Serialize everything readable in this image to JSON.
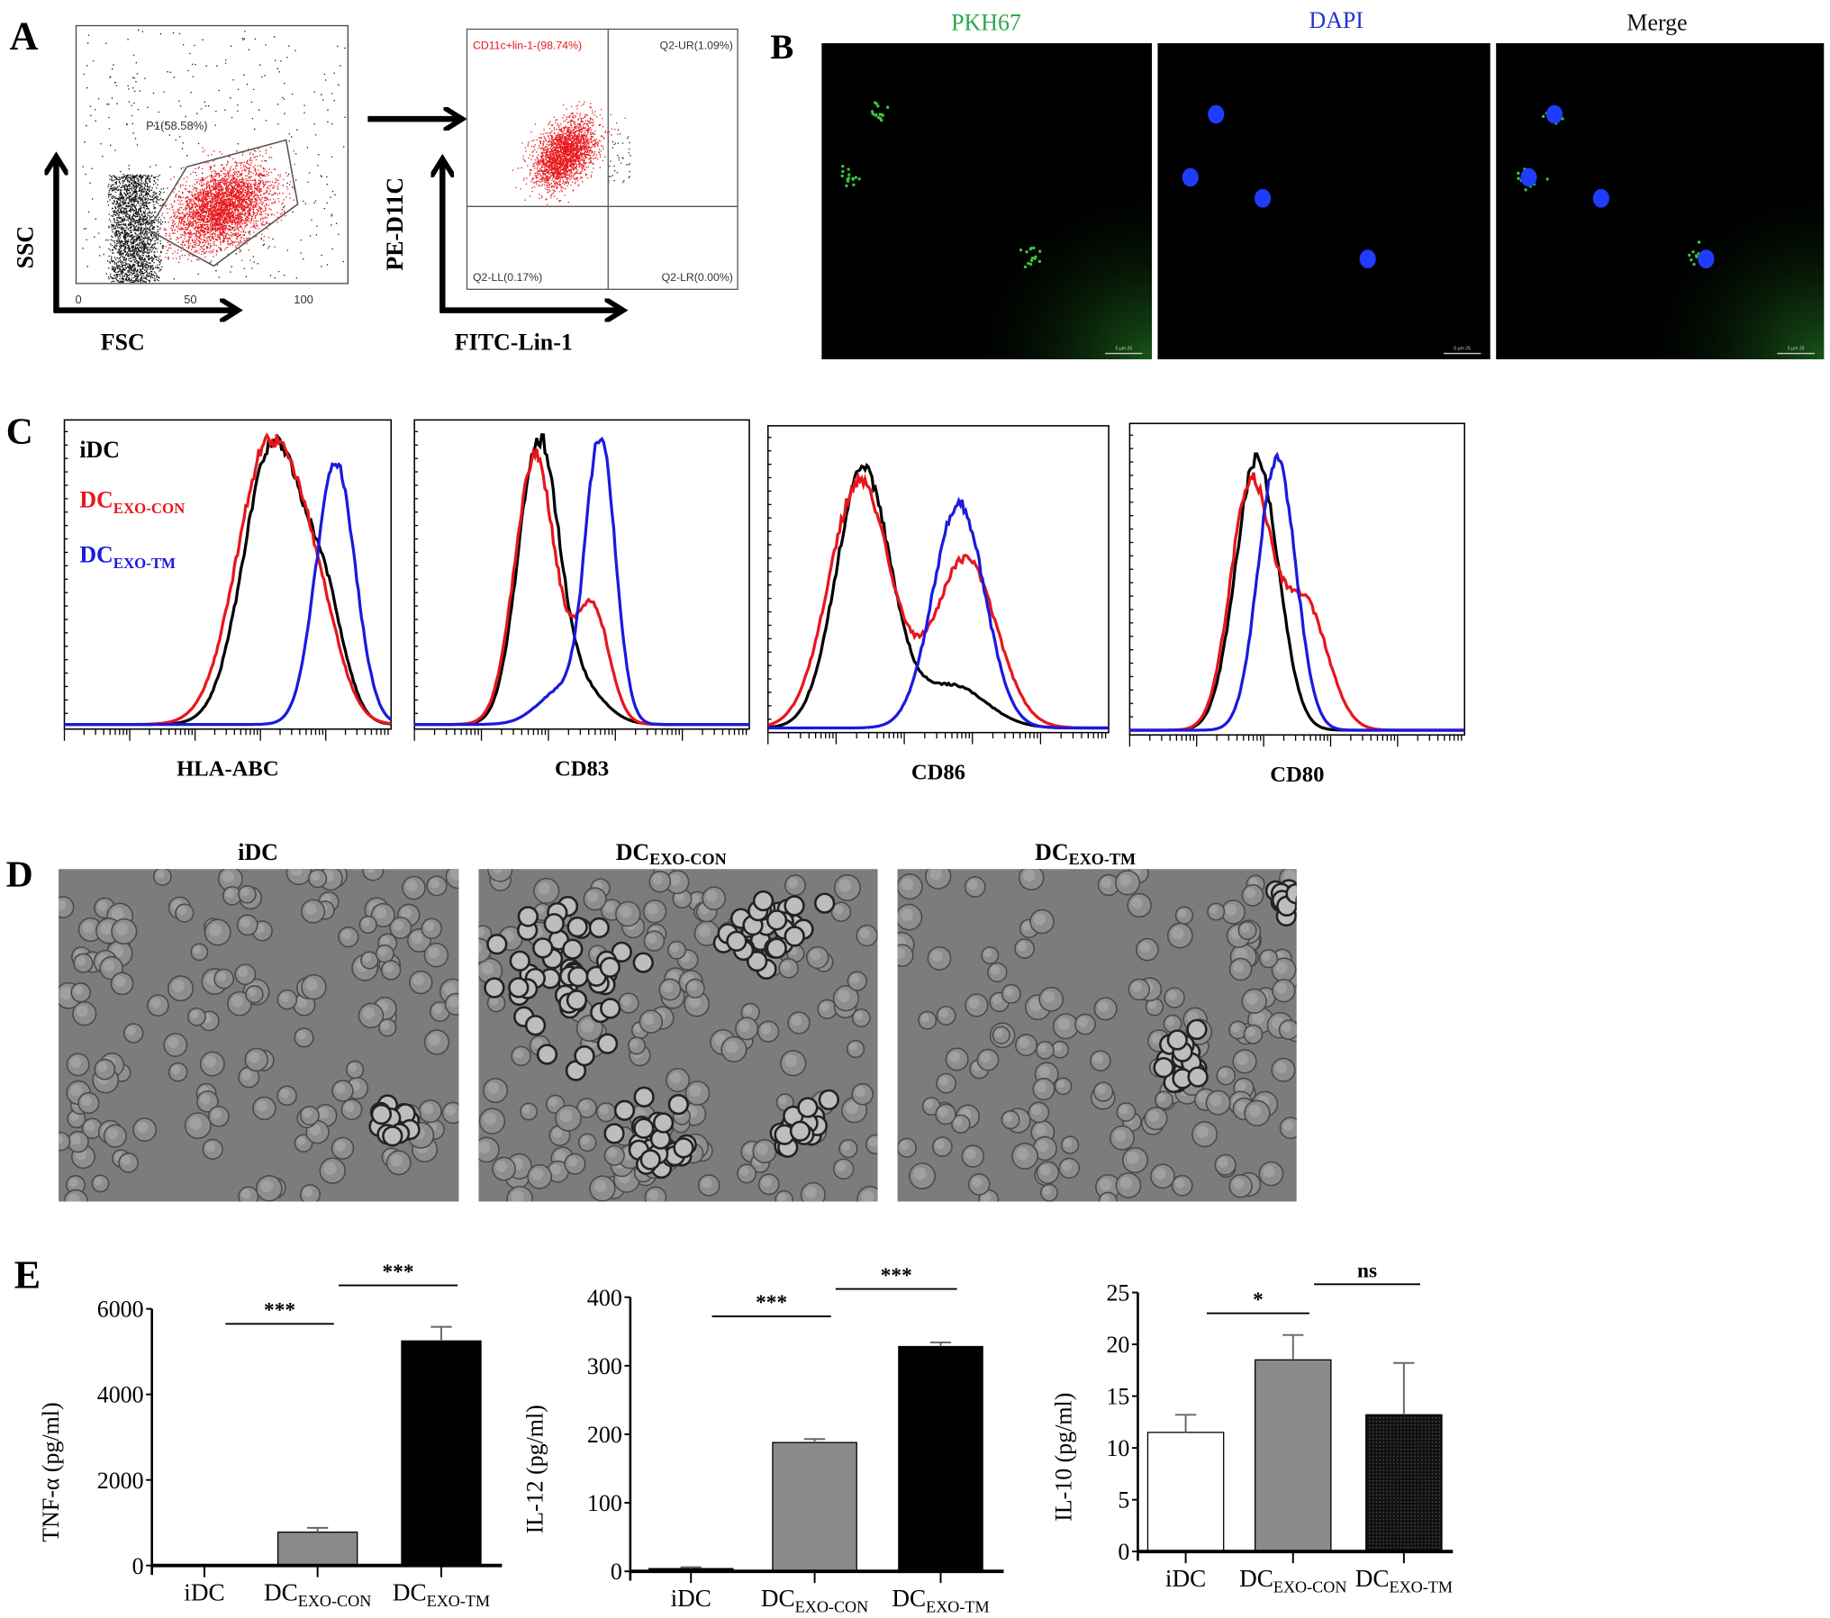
{
  "panel_letters": {
    "a": "A",
    "b": "B",
    "c": "C",
    "d": "D",
    "e": "E"
  },
  "panel_a": {
    "scatter_fsc_ssc": {
      "gate_label": "P1(58.58%)",
      "x_ticks": [
        "0",
        "50",
        "100"
      ],
      "xlabel": "FSC",
      "ylabel": "SSC"
    },
    "scatter_lin_cd11c": {
      "q_ul": "CD11c+lin-1-(98.74%)",
      "q_ur": "Q2-UR(1.09%)",
      "q_ll": "Q2-LL(0.17%)",
      "q_lr": "Q2-LR(0.00%)",
      "xlabel": "FITC-Lin-1",
      "ylabel": "PE-D11C"
    }
  },
  "panel_b": {
    "channels": [
      {
        "label": "PKH67",
        "color": "#2aa84a"
      },
      {
        "label": "DAPI",
        "color": "#2233cc"
      },
      {
        "label": "Merge",
        "color": "#111111"
      }
    ],
    "scale_bar": "0 μm 25"
  },
  "legend": {
    "idc": {
      "main": "iDC",
      "sub": "",
      "color": "#000000"
    },
    "con": {
      "main": "DC",
      "sub": "EXO-CON",
      "color": "#e8161b"
    },
    "tm": {
      "main": "DC",
      "sub": "EXO-TM",
      "color": "#1a1adf"
    }
  },
  "panel_d": {
    "titles": [
      {
        "main": "iDC",
        "sub": ""
      },
      {
        "main": "DC",
        "sub": "EXO-CON"
      },
      {
        "main": "DC",
        "sub": "EXO-TM"
      }
    ]
  },
  "chart_data": [
    {
      "type": "line",
      "title": "",
      "xlabel": "HLA-ABC",
      "ylabel": "",
      "xscale": "log",
      "xlim": [
        0,
        5
      ],
      "series": [
        {
          "name": "iDC",
          "color": "#000000",
          "components": [
            [
              3.2,
              0.45,
              1.0
            ],
            [
              4.0,
              0.3,
              0.35
            ]
          ]
        },
        {
          "name": "DC EXO-CON",
          "color": "#e8161b",
          "components": [
            [
              3.15,
              0.5,
              1.0
            ],
            [
              3.9,
              0.35,
              0.25
            ]
          ]
        },
        {
          "name": "DC EXO-TM",
          "color": "#1a1adf",
          "components": [
            [
              4.15,
              0.3,
              0.92
            ]
          ]
        }
      ]
    },
    {
      "type": "line",
      "title": "",
      "xlabel": "CD83",
      "ylabel": "",
      "xscale": "log",
      "xlim": [
        0,
        5
      ],
      "series": [
        {
          "name": "iDC",
          "color": "#000000",
          "components": [
            [
              1.85,
              0.3,
              1.0
            ],
            [
              2.5,
              0.35,
              0.12
            ]
          ]
        },
        {
          "name": "DC EXO-CON",
          "color": "#e8161b",
          "components": [
            [
              1.8,
              0.3,
              0.95
            ],
            [
              2.65,
              0.25,
              0.42
            ]
          ]
        },
        {
          "name": "DC EXO-TM",
          "color": "#1a1adf",
          "components": [
            [
              2.78,
              0.22,
              1.0
            ],
            [
              2.2,
              0.35,
              0.12
            ]
          ]
        }
      ]
    },
    {
      "type": "line",
      "title": "",
      "xlabel": "CD86",
      "ylabel": "",
      "xscale": "log",
      "xlim": [
        0,
        5
      ],
      "series": [
        {
          "name": "iDC",
          "color": "#000000",
          "components": [
            [
              1.4,
              0.4,
              0.92
            ],
            [
              2.7,
              0.5,
              0.15
            ]
          ]
        },
        {
          "name": "DC EXO-CON",
          "color": "#e8161b",
          "components": [
            [
              1.35,
              0.45,
              0.88
            ],
            [
              2.9,
              0.45,
              0.6
            ]
          ]
        },
        {
          "name": "DC EXO-TM",
          "color": "#1a1adf",
          "components": [
            [
              2.8,
              0.38,
              0.8
            ]
          ]
        }
      ]
    },
    {
      "type": "line",
      "title": "",
      "xlabel": "CD80",
      "ylabel": "",
      "xscale": "log",
      "xlim": [
        0,
        5
      ],
      "series": [
        {
          "name": "iDC",
          "color": "#000000",
          "components": [
            [
              1.9,
              0.32,
              0.95
            ]
          ]
        },
        {
          "name": "DC EXO-CON",
          "color": "#e8161b",
          "components": [
            [
              1.8,
              0.3,
              0.85
            ],
            [
              2.6,
              0.35,
              0.45
            ]
          ]
        },
        {
          "name": "DC EXO-TM",
          "color": "#1a1adf",
          "components": [
            [
              2.2,
              0.28,
              0.95
            ]
          ]
        }
      ]
    },
    {
      "type": "bar",
      "title": "",
      "xlabel": "",
      "ylabel": "TNF-α (pg/ml)",
      "ylim": [
        0,
        6000
      ],
      "y_ticks": [
        "0",
        "2000",
        "4000",
        "6000"
      ],
      "categories": [
        {
          "main": "iDC",
          "sub": ""
        },
        {
          "main": "DC",
          "sub": "EXO-CON"
        },
        {
          "main": "DC",
          "sub": "EXO-TM"
        }
      ],
      "values": [
        0,
        780,
        5250
      ],
      "errors": [
        0,
        100,
        330
      ],
      "fills": [
        "#ffffff",
        "#8a8a8a",
        "#000000"
      ],
      "significance": [
        {
          "pair": [
            0,
            1
          ],
          "label": "***",
          "level": 5650
        },
        {
          "pair": [
            1,
            2
          ],
          "label": "***",
          "level": 6550
        }
      ]
    },
    {
      "type": "bar",
      "title": "",
      "xlabel": "",
      "ylabel": "IL-12 (pg/ml)",
      "ylim": [
        0,
        400
      ],
      "y_ticks": [
        "0",
        "100",
        "200",
        "300",
        "400"
      ],
      "categories": [
        {
          "main": "iDC",
          "sub": ""
        },
        {
          "main": "DC",
          "sub": "EXO-CON"
        },
        {
          "main": "DC",
          "sub": "EXO-TM"
        }
      ],
      "values": [
        4,
        188,
        328
      ],
      "errors": [
        2,
        5,
        6
      ],
      "fills": [
        "#000000",
        "#8a8a8a",
        "#000000"
      ],
      "significance": [
        {
          "pair": [
            0,
            1
          ],
          "label": "***",
          "level": 372
        },
        {
          "pair": [
            1,
            2
          ],
          "label": "***",
          "level": 412
        }
      ]
    },
    {
      "type": "bar",
      "title": "",
      "xlabel": "",
      "ylabel": "IL-10 (pg/ml)",
      "ylim": [
        0,
        25
      ],
      "y_ticks": [
        "0",
        "5",
        "10",
        "15",
        "20",
        "25"
      ],
      "categories": [
        {
          "main": "iDC",
          "sub": ""
        },
        {
          "main": "DC",
          "sub": "EXO-CON"
        },
        {
          "main": "DC",
          "sub": "EXO-TM"
        }
      ],
      "values": [
        11.5,
        18.5,
        13.2
      ],
      "errors": [
        1.7,
        2.4,
        5.0
      ],
      "fills": [
        "#ffffff",
        "#8a8a8a",
        "#1a1a1a"
      ],
      "significance": [
        {
          "pair": [
            0,
            1
          ],
          "label": "*",
          "level": 23
        },
        {
          "pair": [
            1,
            2
          ],
          "label": "ns",
          "level": 25.8
        }
      ]
    }
  ]
}
